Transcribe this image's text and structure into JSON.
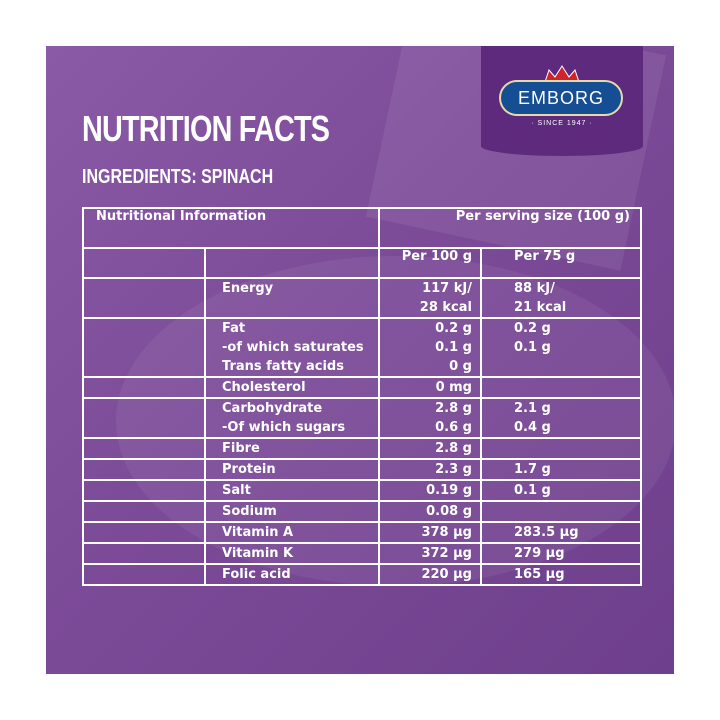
{
  "brand": {
    "name": "EMBORG",
    "since": "· SINCE 1947 ·"
  },
  "title": "NUTRITION FACTS",
  "subtitle": "INGREDIENTS: SPINACH",
  "table": {
    "header_left": "Nutritional Information",
    "header_right": "Per serving size (100 g)",
    "col_a": "Per 100 g",
    "col_b": "Per 75 g",
    "rows": [
      {
        "labels": [
          "Energy"
        ],
        "a": [
          "117 kJ/",
          "28 kcal"
        ],
        "b": [
          "88 kJ/",
          "21 kcal"
        ]
      },
      {
        "labels": [
          "Fat",
          "-of which saturates",
          "Trans fatty acids"
        ],
        "a": [
          "0.2 g",
          "0.1 g",
          "0 g"
        ],
        "b": [
          "0.2 g",
          "0.1 g"
        ]
      },
      {
        "labels": [
          "Cholesterol"
        ],
        "a": [
          "0 mg"
        ],
        "b": []
      },
      {
        "labels": [
          "Carbohydrate",
          "-Of which sugars"
        ],
        "a": [
          "2.8 g",
          "0.6 g"
        ],
        "b": [
          "2.1 g",
          "0.4 g"
        ]
      },
      {
        "labels": [
          "Fibre"
        ],
        "a": [
          "2.8 g"
        ],
        "b": []
      },
      {
        "labels": [
          "Protein"
        ],
        "a": [
          "2.3 g"
        ],
        "b": [
          "1.7 g"
        ]
      },
      {
        "labels": [
          "Salt"
        ],
        "a": [
          "0.19 g"
        ],
        "b": [
          "0.1 g"
        ]
      },
      {
        "labels": [
          "Sodium"
        ],
        "a": [
          "0.08 g"
        ],
        "b": []
      },
      {
        "labels": [
          "Vitamin A"
        ],
        "a": [
          "378 µg"
        ],
        "b": [
          "283.5 µg"
        ]
      },
      {
        "labels": [
          "Vitamin K"
        ],
        "a": [
          "372 µg"
        ],
        "b": [
          "279 µg"
        ]
      },
      {
        "labels": [
          "Folic acid"
        ],
        "a": [
          "220 µg"
        ],
        "b": [
          "165 µg"
        ]
      }
    ]
  },
  "colors": {
    "panel": "#7c4b98",
    "logo_bg": "#5d2a7d",
    "badge": "#164e94",
    "crown": "#d0242b"
  }
}
